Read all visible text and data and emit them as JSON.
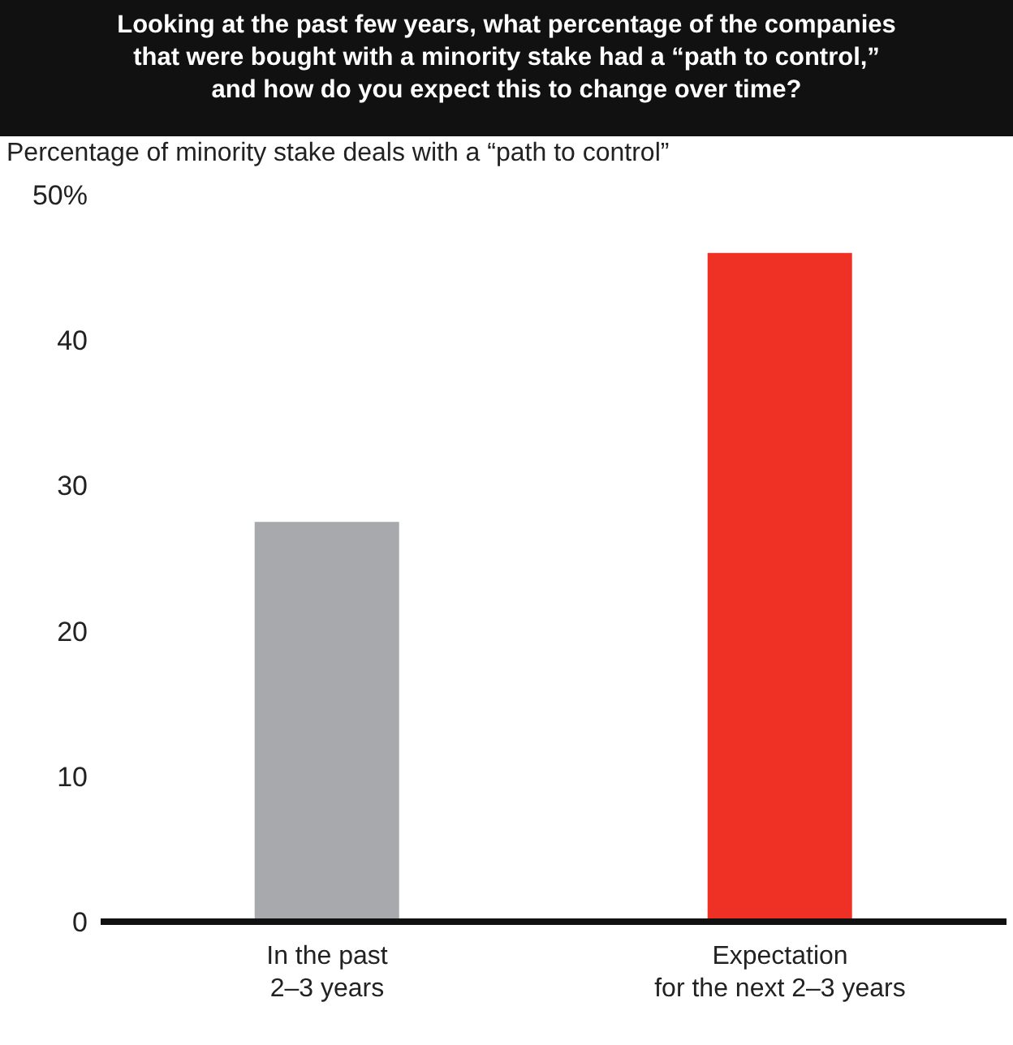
{
  "chart_data": {
    "type": "bar",
    "title": "Looking at the past few years, what percentage of the companies that were bought with a minority stake had a “path to control,” and how do you expect this to change over time?",
    "ylabel": "Percentage of minority stake deals with a “path to control”",
    "categories": [
      "In the past\n2–3 years",
      "Expectation\nfor the next 2–3 years"
    ],
    "values": [
      27.5,
      46
    ],
    "colors": [
      "#a7a9ac",
      "#ee3124"
    ],
    "ylim": [
      0,
      50
    ],
    "yticks": [
      0,
      10,
      20,
      30,
      40,
      {
        "value": 50,
        "label": "50%"
      }
    ]
  }
}
